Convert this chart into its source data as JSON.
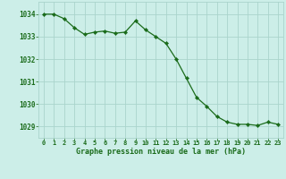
{
  "x": [
    0,
    1,
    2,
    3,
    4,
    5,
    6,
    7,
    8,
    9,
    10,
    11,
    12,
    13,
    14,
    15,
    16,
    17,
    18,
    19,
    20,
    21,
    22,
    23
  ],
  "y": [
    1034.0,
    1034.0,
    1033.8,
    1033.4,
    1033.1,
    1033.2,
    1033.25,
    1033.15,
    1033.2,
    1033.7,
    1033.3,
    1033.0,
    1032.7,
    1032.0,
    1031.15,
    1030.3,
    1029.9,
    1029.45,
    1029.2,
    1029.1,
    1029.1,
    1029.05,
    1029.2,
    1029.1
  ],
  "line_color": "#1a6b1a",
  "marker_color": "#1a6b1a",
  "bg_color": "#cceee8",
  "grid_color": "#aad4cc",
  "xlabel": "Graphe pression niveau de la mer (hPa)",
  "xlabel_color": "#1a6b1a",
  "tick_color": "#1a6b1a",
  "ylim": [
    1028.5,
    1034.55
  ],
  "yticks": [
    1029,
    1030,
    1031,
    1032,
    1033,
    1034
  ],
  "xticks": [
    0,
    1,
    2,
    3,
    4,
    5,
    6,
    7,
    8,
    9,
    10,
    11,
    12,
    13,
    14,
    15,
    16,
    17,
    18,
    19,
    20,
    21,
    22,
    23
  ],
  "xtick_labels": [
    "0",
    "1",
    "2",
    "3",
    "4",
    "5",
    "6",
    "7",
    "8",
    "9",
    "10",
    "11",
    "12",
    "13",
    "14",
    "15",
    "16",
    "17",
    "18",
    "19",
    "20",
    "21",
    "22",
    "23"
  ]
}
